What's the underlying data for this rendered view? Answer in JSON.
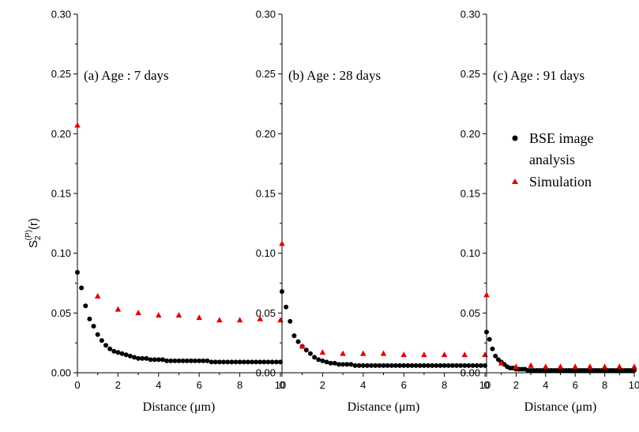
{
  "y_axis_label": {
    "main": "S",
    "sub": "2",
    "sup": "(P)",
    "suffix": "(r)"
  },
  "legend": {
    "entries": [
      {
        "label_line1": "BSE image",
        "label_line2": "analysis",
        "color": "#000000",
        "marker": "circle"
      },
      {
        "label_line1": "Simulation",
        "label_line2": "",
        "color": "#e00000",
        "marker": "triangle"
      }
    ]
  },
  "chart_data": [
    {
      "type": "scatter",
      "panel_label": "(a) Age : 7 days",
      "xlabel": "Distance (μm)",
      "ylabel": "S2(P)(r)",
      "xlim": [
        0,
        10
      ],
      "ylim": [
        0,
        0.3
      ],
      "xticks": [
        0,
        2,
        4,
        6,
        8,
        10
      ],
      "yticks": [
        0.0,
        0.05,
        0.1,
        0.15,
        0.2,
        0.25,
        0.3
      ],
      "series": [
        {
          "name": "BSE image analysis",
          "color": "#000000",
          "marker": "circle",
          "x": [
            0,
            0.2,
            0.4,
            0.6,
            0.8,
            1.0,
            1.2,
            1.4,
            1.6,
            1.8,
            2.0,
            2.2,
            2.4,
            2.6,
            2.8,
            3.0,
            3.2,
            3.4,
            3.6,
            3.8,
            4.0,
            4.2,
            4.4,
            4.6,
            4.8,
            5.0,
            5.2,
            5.4,
            5.6,
            5.8,
            6.0,
            6.2,
            6.4,
            6.6,
            6.8,
            7.0,
            7.2,
            7.4,
            7.6,
            7.8,
            8.0,
            8.2,
            8.4,
            8.6,
            8.8,
            9.0,
            9.2,
            9.4,
            9.6,
            9.8,
            10.0
          ],
          "y": [
            0.084,
            0.071,
            0.056,
            0.045,
            0.039,
            0.032,
            0.027,
            0.023,
            0.02,
            0.018,
            0.017,
            0.016,
            0.015,
            0.014,
            0.013,
            0.012,
            0.012,
            0.012,
            0.011,
            0.011,
            0.011,
            0.011,
            0.01,
            0.01,
            0.01,
            0.01,
            0.01,
            0.01,
            0.01,
            0.01,
            0.01,
            0.01,
            0.01,
            0.009,
            0.009,
            0.009,
            0.009,
            0.009,
            0.009,
            0.009,
            0.009,
            0.009,
            0.009,
            0.009,
            0.009,
            0.009,
            0.009,
            0.009,
            0.009,
            0.009,
            0.009
          ]
        },
        {
          "name": "Simulation",
          "color": "#e00000",
          "marker": "triangle",
          "x": [
            0,
            1,
            2,
            3,
            4,
            5,
            6,
            7,
            8,
            9,
            10
          ],
          "y": [
            0.207,
            0.064,
            0.053,
            0.05,
            0.048,
            0.048,
            0.046,
            0.044,
            0.044,
            0.045,
            0.044
          ]
        }
      ]
    },
    {
      "type": "scatter",
      "panel_label": "(b) Age : 28 days",
      "xlabel": "Distance (μm)",
      "ylabel": "",
      "xlim": [
        0,
        10
      ],
      "ylim": [
        0,
        0.3
      ],
      "xticks": [
        0,
        2,
        4,
        6,
        8,
        10
      ],
      "yticks": [
        0.0,
        0.05,
        0.1,
        0.15,
        0.2,
        0.25,
        0.3
      ],
      "series": [
        {
          "name": "BSE image analysis",
          "color": "#000000",
          "marker": "circle",
          "x": [
            0,
            0.2,
            0.4,
            0.6,
            0.8,
            1.0,
            1.2,
            1.4,
            1.6,
            1.8,
            2.0,
            2.2,
            2.4,
            2.6,
            2.8,
            3.0,
            3.2,
            3.4,
            3.6,
            3.8,
            4.0,
            4.2,
            4.4,
            4.6,
            4.8,
            5.0,
            5.2,
            5.4,
            5.6,
            5.8,
            6.0,
            6.2,
            6.4,
            6.6,
            6.8,
            7.0,
            7.2,
            7.4,
            7.6,
            7.8,
            8.0,
            8.2,
            8.4,
            8.6,
            8.8,
            9.0,
            9.2,
            9.4,
            9.6,
            9.8,
            10.0
          ],
          "y": [
            0.068,
            0.055,
            0.043,
            0.031,
            0.026,
            0.022,
            0.019,
            0.016,
            0.013,
            0.011,
            0.01,
            0.009,
            0.008,
            0.008,
            0.007,
            0.007,
            0.007,
            0.007,
            0.006,
            0.006,
            0.006,
            0.006,
            0.006,
            0.006,
            0.006,
            0.006,
            0.006,
            0.006,
            0.006,
            0.006,
            0.006,
            0.006,
            0.006,
            0.006,
            0.006,
            0.006,
            0.006,
            0.006,
            0.006,
            0.006,
            0.006,
            0.006,
            0.006,
            0.006,
            0.006,
            0.006,
            0.006,
            0.006,
            0.006,
            0.006,
            0.006
          ]
        },
        {
          "name": "Simulation",
          "color": "#e00000",
          "marker": "triangle",
          "x": [
            0,
            1,
            2,
            3,
            4,
            5,
            6,
            7,
            8,
            9,
            10
          ],
          "y": [
            0.108,
            0.022,
            0.017,
            0.016,
            0.016,
            0.016,
            0.015,
            0.015,
            0.015,
            0.015,
            0.015
          ]
        }
      ]
    },
    {
      "type": "scatter",
      "panel_label": "(c) Age : 91 days",
      "xlabel": "Distance (μm)",
      "ylabel": "",
      "xlim": [
        0,
        10
      ],
      "ylim": [
        0,
        0.3
      ],
      "xticks": [
        0,
        2,
        4,
        6,
        8,
        10
      ],
      "yticks": [
        0.0,
        0.05,
        0.1,
        0.15,
        0.2,
        0.25,
        0.3
      ],
      "series": [
        {
          "name": "BSE image analysis",
          "color": "#000000",
          "marker": "circle",
          "x": [
            0,
            0.2,
            0.4,
            0.6,
            0.8,
            1.0,
            1.2,
            1.4,
            1.6,
            1.8,
            2.0,
            2.2,
            2.4,
            2.6,
            2.8,
            3.0,
            3.2,
            3.4,
            3.6,
            3.8,
            4.0,
            4.2,
            4.4,
            4.6,
            4.8,
            5.0,
            5.2,
            5.4,
            5.6,
            5.8,
            6.0,
            6.2,
            6.4,
            6.6,
            6.8,
            7.0,
            7.2,
            7.4,
            7.6,
            7.8,
            8.0,
            8.2,
            8.4,
            8.6,
            8.8,
            9.0,
            9.2,
            9.4,
            9.6,
            9.8,
            10.0
          ],
          "y": [
            0.034,
            0.028,
            0.02,
            0.014,
            0.011,
            0.009,
            0.007,
            0.005,
            0.004,
            0.004,
            0.003,
            0.003,
            0.003,
            0.003,
            0.002,
            0.002,
            0.002,
            0.002,
            0.002,
            0.002,
            0.002,
            0.002,
            0.002,
            0.002,
            0.002,
            0.002,
            0.002,
            0.002,
            0.002,
            0.002,
            0.002,
            0.002,
            0.002,
            0.002,
            0.002,
            0.002,
            0.002,
            0.002,
            0.002,
            0.002,
            0.002,
            0.002,
            0.002,
            0.002,
            0.002,
            0.002,
            0.002,
            0.002,
            0.002,
            0.002,
            0.002
          ]
        },
        {
          "name": "Simulation",
          "color": "#e00000",
          "marker": "triangle",
          "x": [
            0,
            1,
            2,
            3,
            4,
            5,
            6,
            7,
            8,
            9,
            10
          ],
          "y": [
            0.065,
            0.008,
            0.005,
            0.006,
            0.005,
            0.005,
            0.005,
            0.005,
            0.005,
            0.005,
            0.005
          ]
        }
      ]
    }
  ]
}
